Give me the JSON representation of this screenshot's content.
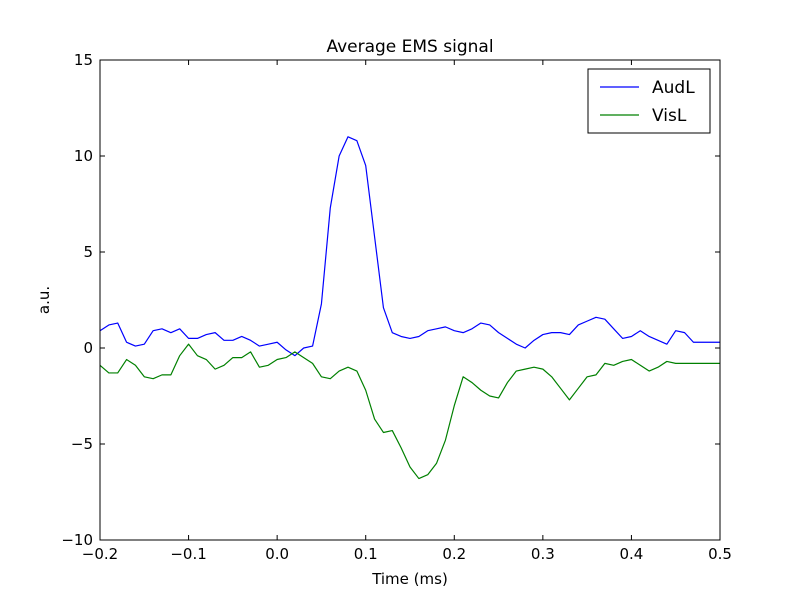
{
  "chart_data": {
    "type": "line",
    "title": "Average EMS signal",
    "xlabel": "Time (ms)",
    "ylabel": "a.u.",
    "xlim": [
      -0.2,
      0.5
    ],
    "ylim": [
      -10,
      15
    ],
    "xticks": [
      -0.2,
      -0.1,
      0.0,
      0.1,
      0.2,
      0.3,
      0.4,
      0.5
    ],
    "xtick_labels": [
      "−0.2",
      "−0.1",
      "0.0",
      "0.1",
      "0.2",
      "0.3",
      "0.4",
      "0.5"
    ],
    "yticks": [
      -10,
      -5,
      0,
      5,
      10,
      15
    ],
    "ytick_labels": [
      "−10",
      "−5",
      "0",
      "5",
      "10",
      "15"
    ],
    "grid": false,
    "legend_position": "top-right",
    "series": [
      {
        "name": "AudL",
        "color": "#0000ff",
        "x": [
          -0.2,
          -0.19,
          -0.18,
          -0.17,
          -0.16,
          -0.15,
          -0.14,
          -0.13,
          -0.12,
          -0.11,
          -0.1,
          -0.09,
          -0.08,
          -0.07,
          -0.06,
          -0.05,
          -0.04,
          -0.03,
          -0.02,
          -0.01,
          0.0,
          0.01,
          0.02,
          0.03,
          0.04,
          0.05,
          0.06,
          0.07,
          0.08,
          0.09,
          0.1,
          0.11,
          0.12,
          0.13,
          0.14,
          0.15,
          0.16,
          0.17,
          0.18,
          0.19,
          0.2,
          0.21,
          0.22,
          0.23,
          0.24,
          0.25,
          0.26,
          0.27,
          0.28,
          0.29,
          0.3,
          0.31,
          0.32,
          0.33,
          0.34,
          0.35,
          0.36,
          0.37,
          0.38,
          0.39,
          0.4,
          0.41,
          0.42,
          0.43,
          0.44,
          0.45,
          0.46,
          0.47,
          0.48,
          0.49,
          0.5
        ],
        "y": [
          0.9,
          1.2,
          1.3,
          0.3,
          0.1,
          0.2,
          0.9,
          1.0,
          0.8,
          1.0,
          0.5,
          0.5,
          0.7,
          0.8,
          0.4,
          0.4,
          0.6,
          0.4,
          0.1,
          0.2,
          0.3,
          -0.1,
          -0.4,
          0.0,
          0.1,
          2.3,
          7.3,
          10.0,
          11.0,
          10.8,
          9.5,
          5.8,
          2.1,
          0.8,
          0.6,
          0.5,
          0.6,
          0.9,
          1.0,
          1.1,
          0.9,
          0.8,
          1.0,
          1.3,
          1.2,
          0.8,
          0.5,
          0.2,
          0.0,
          0.4,
          0.7,
          0.8,
          0.8,
          0.7,
          1.2,
          1.4,
          1.6,
          1.5,
          1.0,
          0.5,
          0.6,
          0.9,
          0.6,
          0.4,
          0.2,
          0.9,
          0.8,
          0.3,
          0.3,
          0.3,
          0.3
        ]
      },
      {
        "name": "VisL",
        "color": "#008000",
        "x": [
          -0.2,
          -0.19,
          -0.18,
          -0.17,
          -0.16,
          -0.15,
          -0.14,
          -0.13,
          -0.12,
          -0.11,
          -0.1,
          -0.09,
          -0.08,
          -0.07,
          -0.06,
          -0.05,
          -0.04,
          -0.03,
          -0.02,
          -0.01,
          0.0,
          0.01,
          0.02,
          0.03,
          0.04,
          0.05,
          0.06,
          0.07,
          0.08,
          0.09,
          0.1,
          0.11,
          0.12,
          0.13,
          0.14,
          0.15,
          0.16,
          0.17,
          0.18,
          0.19,
          0.2,
          0.21,
          0.22,
          0.23,
          0.24,
          0.25,
          0.26,
          0.27,
          0.28,
          0.29,
          0.3,
          0.31,
          0.32,
          0.33,
          0.34,
          0.35,
          0.36,
          0.37,
          0.38,
          0.39,
          0.4,
          0.41,
          0.42,
          0.43,
          0.44,
          0.45,
          0.46,
          0.47,
          0.48,
          0.49,
          0.5
        ],
        "y": [
          -0.9,
          -1.3,
          -1.3,
          -0.6,
          -0.9,
          -1.5,
          -1.6,
          -1.4,
          -1.4,
          -0.4,
          0.2,
          -0.4,
          -0.6,
          -1.1,
          -0.9,
          -0.5,
          -0.5,
          -0.2,
          -1.0,
          -0.9,
          -0.6,
          -0.5,
          -0.2,
          -0.5,
          -0.8,
          -1.5,
          -1.6,
          -1.2,
          -1.0,
          -1.2,
          -2.2,
          -3.7,
          -4.4,
          -4.3,
          -5.2,
          -6.2,
          -6.8,
          -6.6,
          -6.0,
          -4.8,
          -3.0,
          -1.5,
          -1.8,
          -2.2,
          -2.5,
          -2.6,
          -1.8,
          -1.2,
          -1.1,
          -1.0,
          -1.1,
          -1.5,
          -2.1,
          -2.7,
          -2.1,
          -1.5,
          -1.4,
          -0.8,
          -0.9,
          -0.7,
          -0.6,
          -0.9,
          -1.2,
          -1.0,
          -0.7,
          -0.8,
          -0.8,
          -0.8,
          -0.8,
          -0.8,
          -0.8
        ]
      }
    ]
  }
}
